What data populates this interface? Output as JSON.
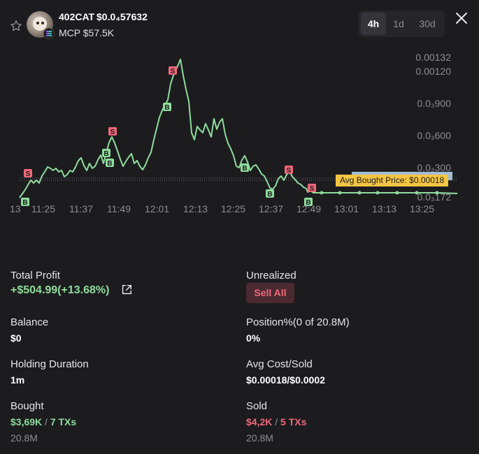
{
  "token": {
    "name": "402CAT",
    "price": "$0.0₄57632",
    "mcp": "MCP $57.5K"
  },
  "timeframes": [
    "4h",
    "1d",
    "30d"
  ],
  "active_timeframe": "4h",
  "chart_data": {
    "type": "line",
    "y_ticks": [
      "0.00132",
      "0.00120",
      "0.0₃900",
      "0.0₃600",
      "0.0₃300",
      "0.0₃172"
    ],
    "x_ticks": [
      "13",
      "11:25",
      "11:37",
      "11:49",
      "12:01",
      "12:13",
      "12:25",
      "12:37",
      "12:49",
      "13:01",
      "13:13",
      "13:25"
    ],
    "avg_bought_label": "Avg Bought Price: $0.00018",
    "line_color": "#8fdc9c",
    "buy_marker_color": "#8fdc9c",
    "sell_marker_color": "#f0687a",
    "buy_label": "B",
    "sell_label": "S"
  },
  "stats": {
    "total_profit_label": "Total Profit",
    "total_profit_value": "+$504.99(+13.68%)",
    "unrealized_label": "Unrealized",
    "sell_all_label": "Sell All",
    "balance_label": "Balance",
    "balance_value": "$0",
    "position_label": "Position%(0 of 20.8M)",
    "position_value": "0%",
    "holding_label": "Holding Duration",
    "holding_value": "1m",
    "avg_cost_label": "Avg Cost/Sold",
    "avg_cost_value": "$0.00018/$0.0002",
    "bought_label": "Bought",
    "bought_amount": "$3,69K",
    "bought_sep": "/",
    "bought_txs": "7 TXs",
    "bought_qty": "20.8M",
    "sold_label": "Sold",
    "sold_amount": "$4,2K",
    "sold_sep": "/",
    "sold_txs": "5 TXs",
    "sold_qty": "20.8M"
  },
  "colors": {
    "background": "#1c1c1f",
    "profit": "#8fdc9c",
    "loss": "#f0687a",
    "avg_tag": "#f4c542"
  }
}
